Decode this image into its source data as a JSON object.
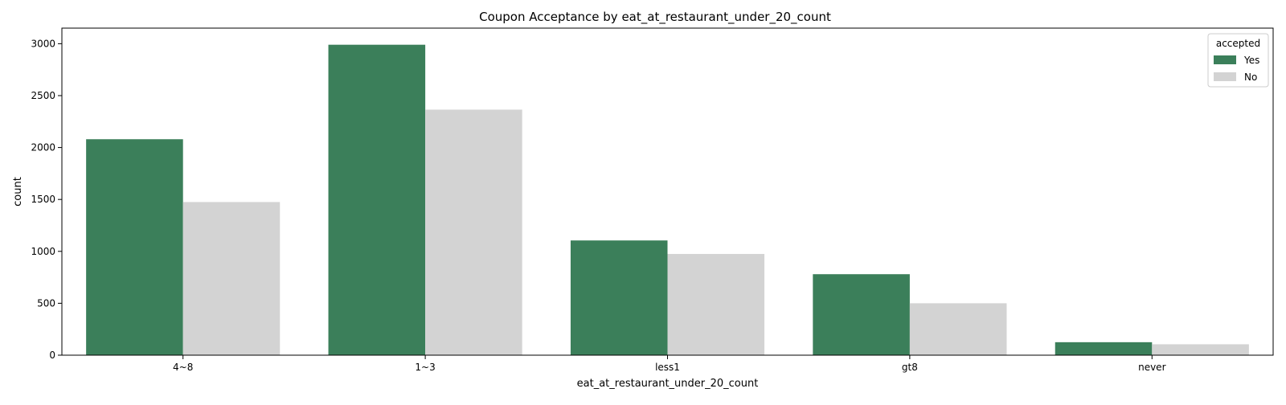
{
  "chart_data": {
    "type": "bar",
    "title": "Coupon Acceptance by eat_at_restaurant_under_20_count",
    "xlabel": "eat_at_restaurant_under_20_count",
    "ylabel": "count",
    "categories": [
      "4~8",
      "1~3",
      "less1",
      "gt8",
      "never"
    ],
    "series": [
      {
        "name": "Yes",
        "color": "#3b7f5a",
        "values": [
          2080,
          2990,
          1105,
          780,
          125
        ]
      },
      {
        "name": "No",
        "color": "#d3d3d3",
        "values": [
          1475,
          2365,
          975,
          500,
          105
        ]
      }
    ],
    "ylim": [
      0,
      3150
    ],
    "yticks": [
      0,
      500,
      1000,
      1500,
      2000,
      2500,
      3000
    ],
    "legend": {
      "title": "accepted",
      "placement": "top-right"
    },
    "grid": false
  }
}
